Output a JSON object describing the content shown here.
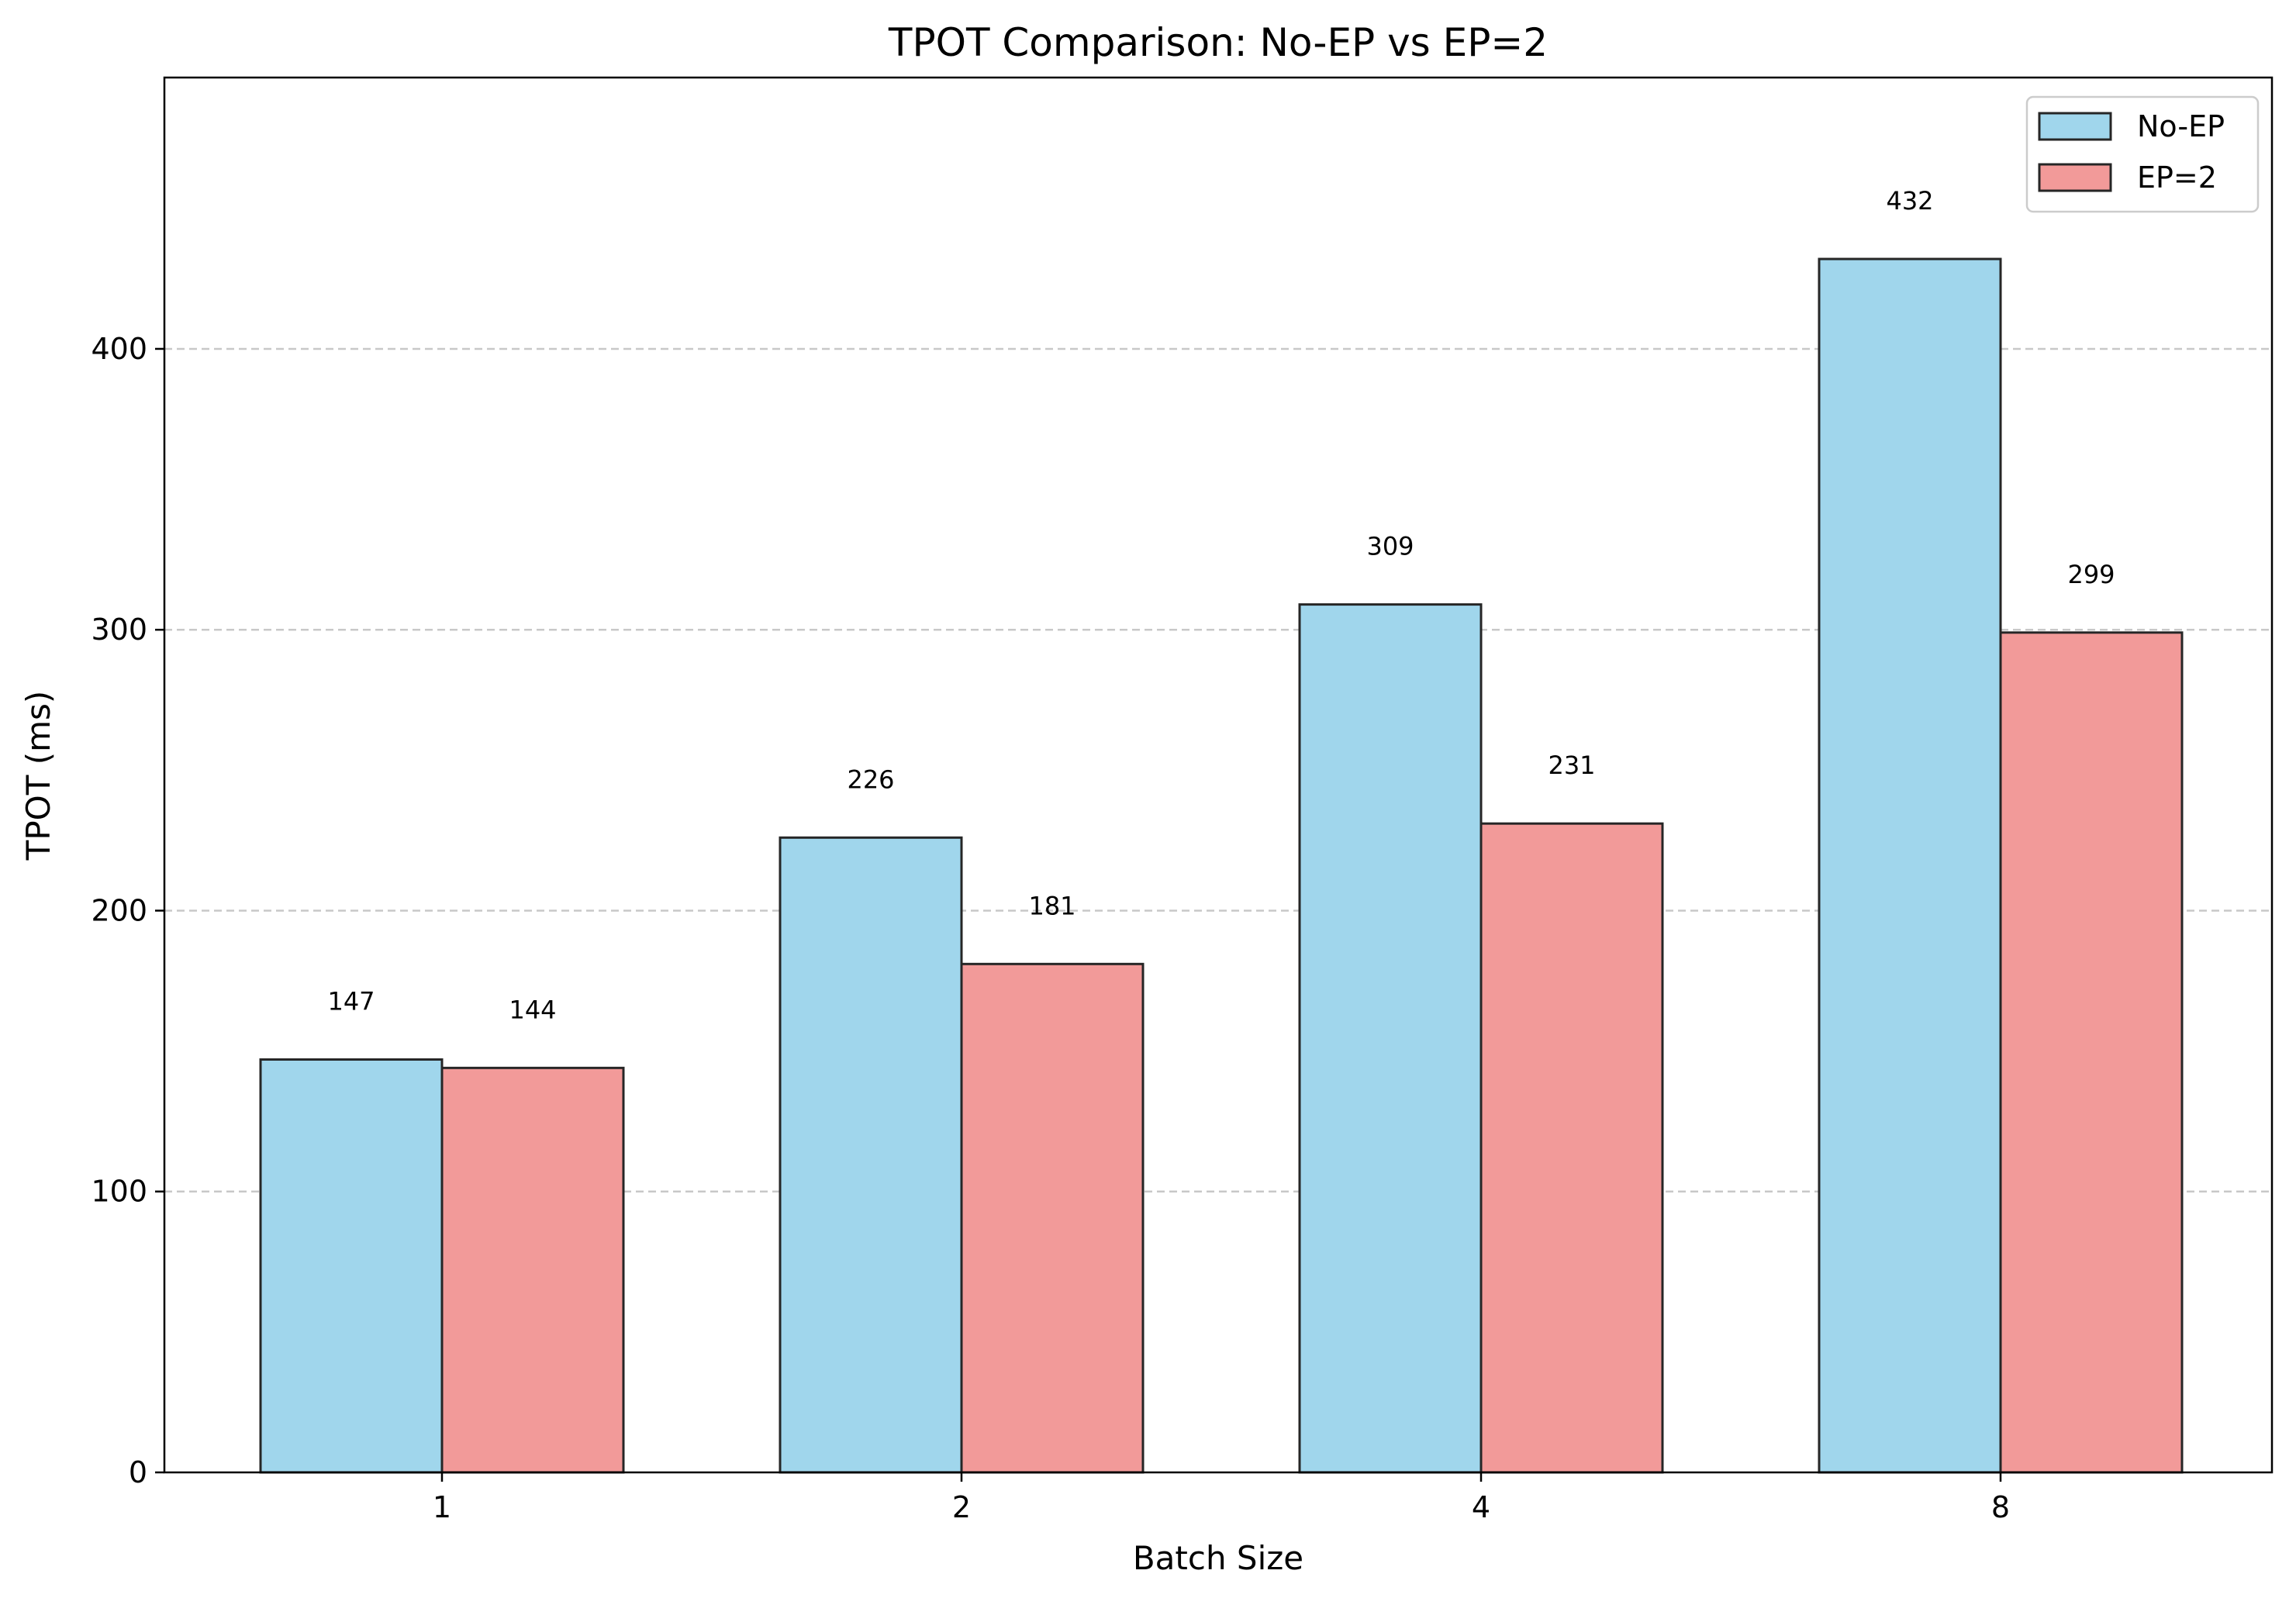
{
  "chart_data": {
    "type": "bar",
    "title": "TPOT Comparison: No-EP vs EP=2",
    "xlabel": "Batch Size",
    "ylabel": "TPOT (ms)",
    "categories": [
      "1",
      "2",
      "4",
      "8"
    ],
    "series": [
      {
        "name": "No-EP",
        "values": [
          147,
          226,
          309,
          432
        ],
        "color": "#a0d6ec"
      },
      {
        "name": "EP=2",
        "values": [
          144,
          181,
          231,
          299
        ],
        "color": "#f29a99"
      }
    ],
    "ylim": [
      0,
      496.6
    ],
    "yticks": [
      0,
      100,
      200,
      300,
      400
    ],
    "grid": "y-axis dashed",
    "legend_position": "top-right",
    "data_labels": true
  }
}
